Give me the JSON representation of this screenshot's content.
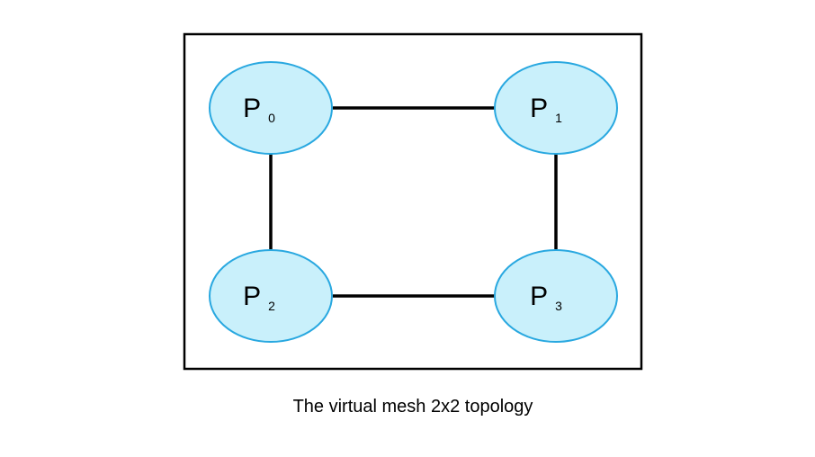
{
  "caption": "The virtual mesh 2x2 topology",
  "colors": {
    "node_fill": "#c9f0fb",
    "node_stroke": "#29a8e0",
    "edge": "#000000",
    "frame": "#000000"
  },
  "nodes": [
    {
      "id": "P0",
      "base": "P",
      "sub": "0"
    },
    {
      "id": "P1",
      "base": "P",
      "sub": "1"
    },
    {
      "id": "P2",
      "base": "P",
      "sub": "2"
    },
    {
      "id": "P3",
      "base": "P",
      "sub": "3"
    }
  ],
  "edges": [
    {
      "from": "P0",
      "to": "P1"
    },
    {
      "from": "P0",
      "to": "P2"
    },
    {
      "from": "P1",
      "to": "P3"
    },
    {
      "from": "P2",
      "to": "P3"
    }
  ]
}
